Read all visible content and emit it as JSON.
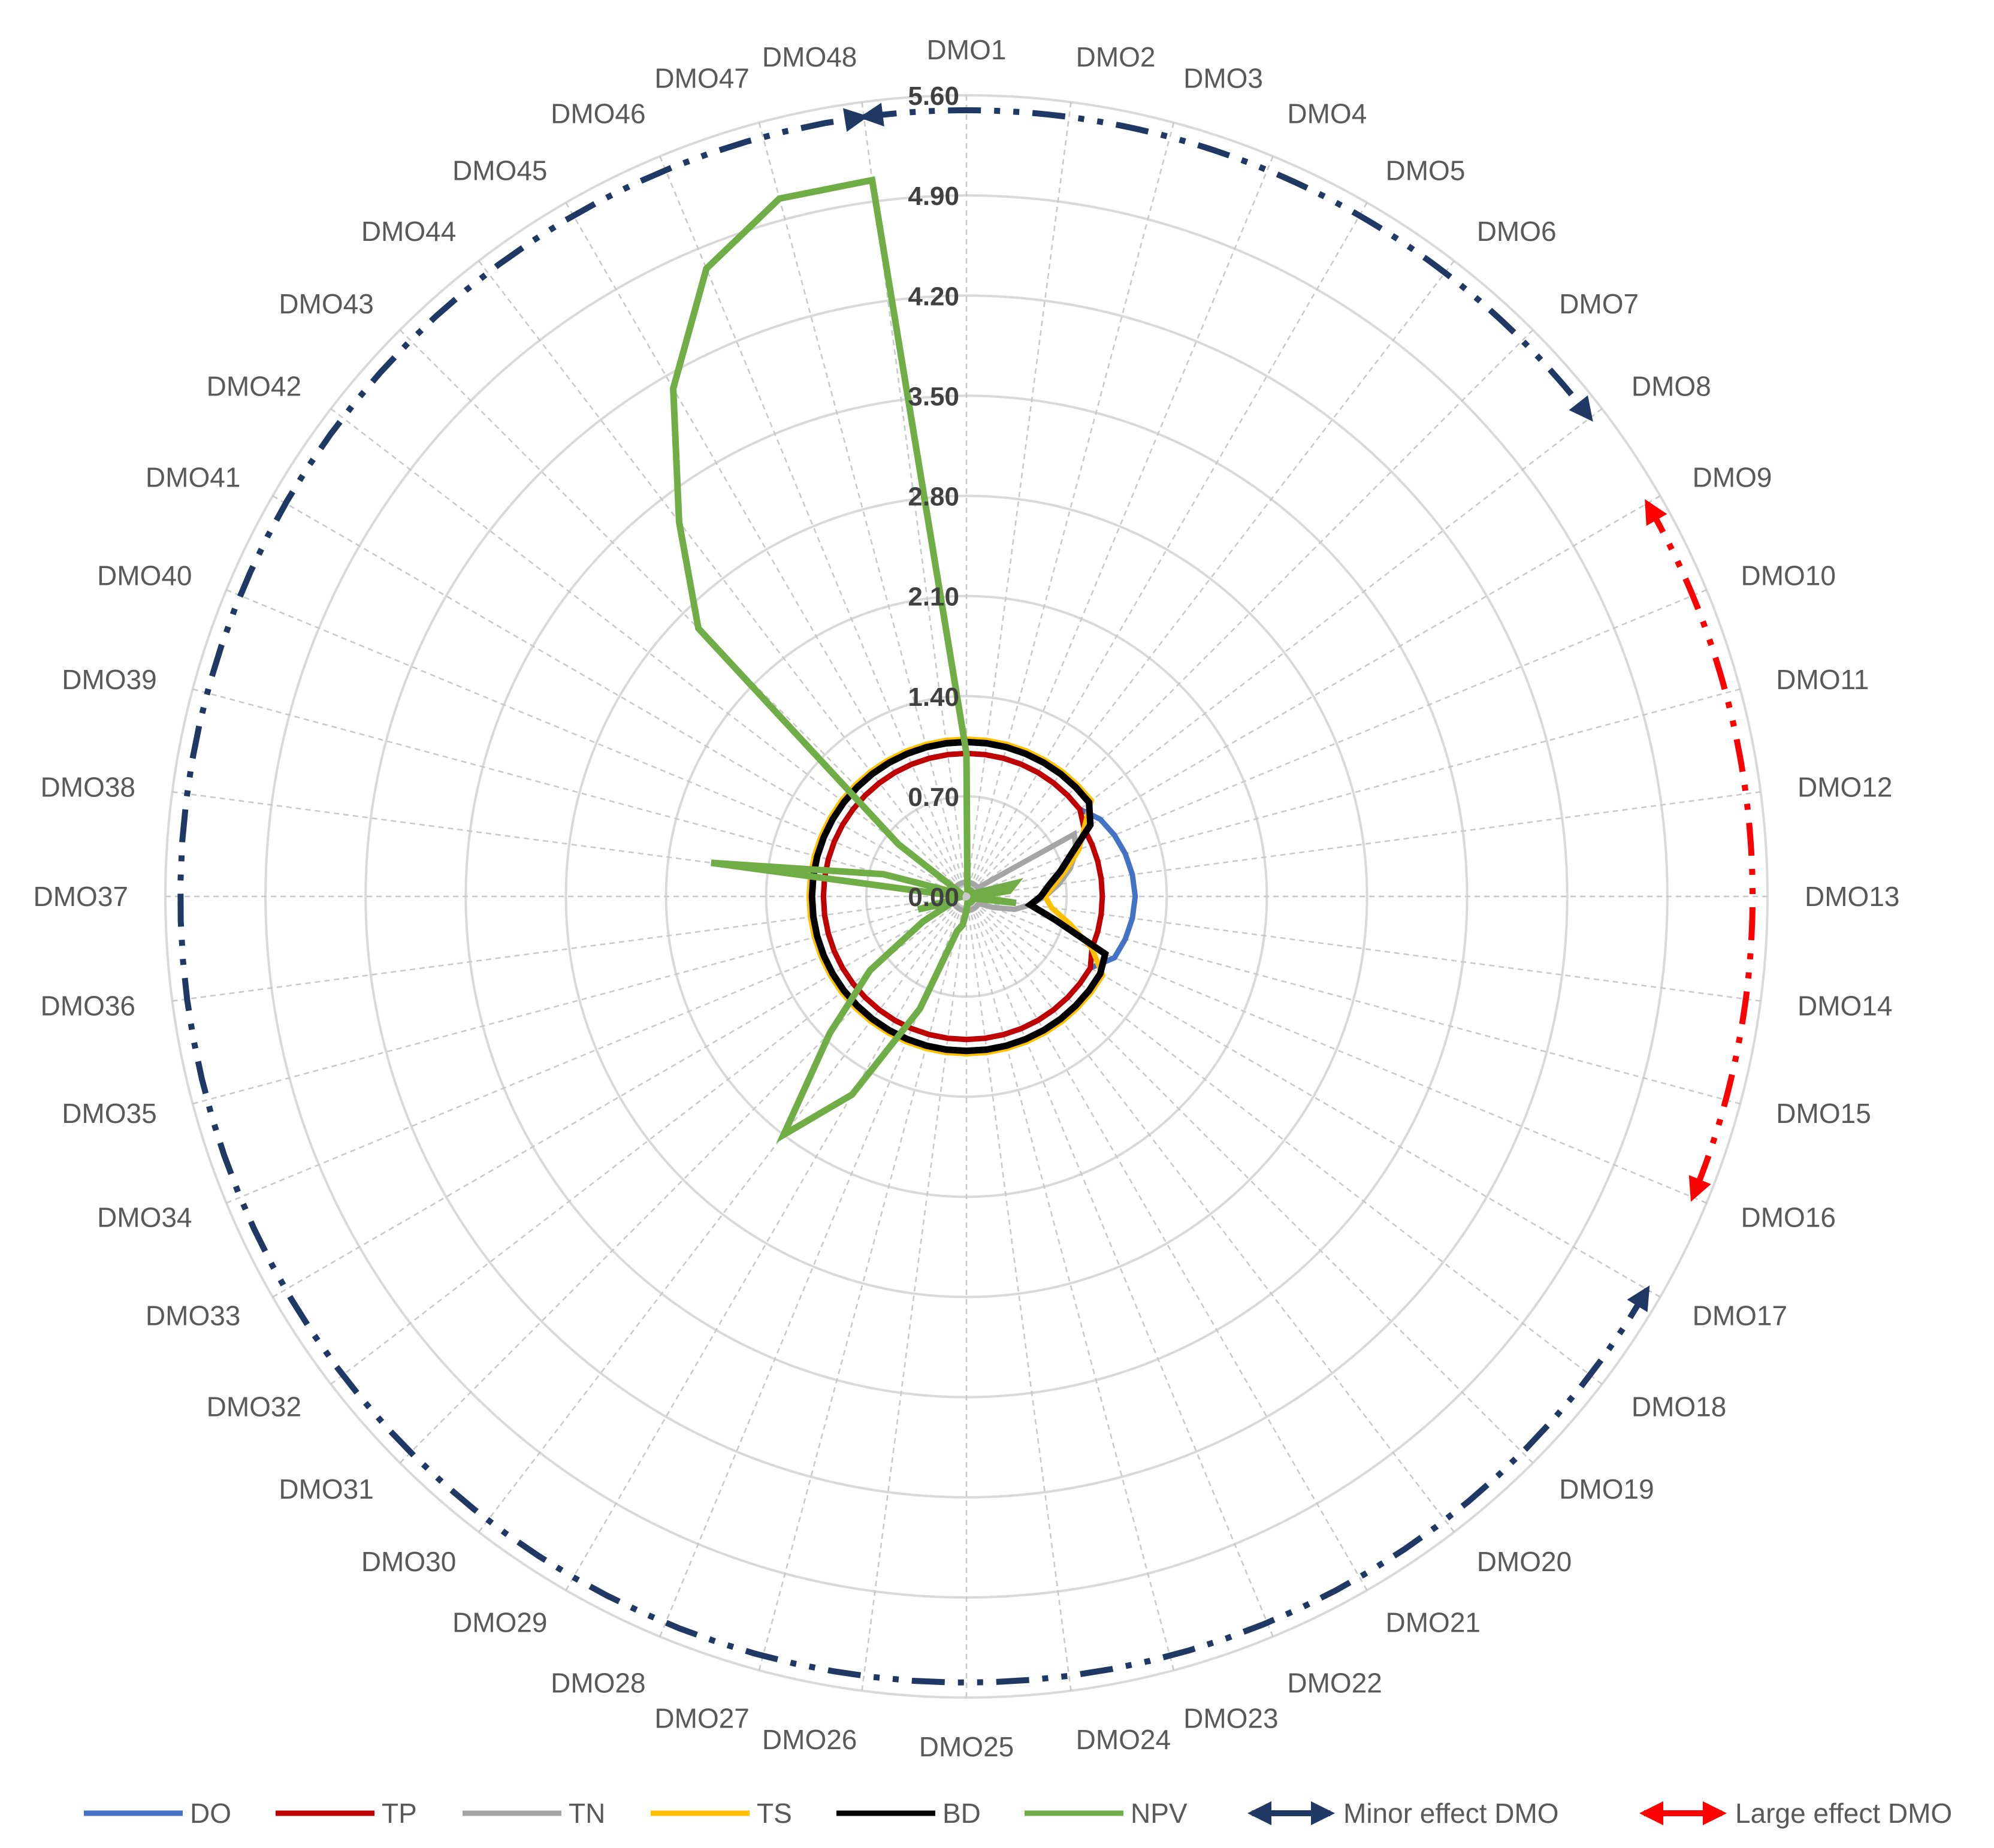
{
  "chart_data": {
    "type": "radar",
    "title": "",
    "categories": [
      "DMO1",
      "DMO2",
      "DMO3",
      "DMO4",
      "DMO5",
      "DMO6",
      "DMO7",
      "DMO8",
      "DMO9",
      "DMO10",
      "DMO11",
      "DMO12",
      "DMO13",
      "DMO14",
      "DMO15",
      "DMO16",
      "DMO17",
      "DMO18",
      "DMO19",
      "DMO20",
      "DMO21",
      "DMO22",
      "DMO23",
      "DMO24",
      "DMO25",
      "DMO26",
      "DMO27",
      "DMO28",
      "DMO29",
      "DMO30",
      "DMO31",
      "DMO32",
      "DMO33",
      "DMO34",
      "DMO35",
      "DMO36",
      "DMO37",
      "DMO38",
      "DMO39",
      "DMO40",
      "DMO41",
      "DMO42",
      "DMO43",
      "DMO44",
      "DMO45",
      "DMO46",
      "DMO47",
      "DMO48"
    ],
    "r_ticks": [
      "0.00",
      "0.70",
      "1.40",
      "2.10",
      "2.80",
      "3.50",
      "4.20",
      "4.90",
      "5.60"
    ],
    "rlim": [
      0,
      5.6
    ],
    "grid": true,
    "legend_position": "bottom",
    "series": [
      {
        "name": "DO",
        "color": "#4472C4",
        "values": [
          1.0,
          1.0,
          1.0,
          1.0,
          1.0,
          1.0,
          1.0,
          1.0,
          1.08,
          1.12,
          1.15,
          1.17,
          1.18,
          1.17,
          1.15,
          1.12,
          1.0,
          1.0,
          1.0,
          1.0,
          1.0,
          1.0,
          1.0,
          1.0,
          1.0,
          1.0,
          1.0,
          1.0,
          1.0,
          1.0,
          1.0,
          1.0,
          1.0,
          1.0,
          1.0,
          1.0,
          1.0,
          1.0,
          1.0,
          1.0,
          1.0,
          1.0,
          1.0,
          1.0,
          1.0,
          1.0,
          1.0,
          1.0
        ]
      },
      {
        "name": "TP",
        "color": "#C00000",
        "values": [
          1.0,
          1.0,
          1.0,
          1.0,
          1.0,
          1.0,
          1.0,
          1.0,
          0.95,
          0.95,
          0.95,
          0.95,
          0.95,
          0.95,
          0.95,
          0.95,
          1.0,
          1.0,
          1.0,
          1.0,
          1.0,
          1.0,
          1.0,
          1.0,
          1.0,
          1.0,
          1.0,
          1.0,
          1.0,
          1.0,
          1.0,
          1.0,
          1.0,
          1.0,
          1.0,
          1.0,
          1.0,
          1.0,
          1.0,
          1.0,
          1.0,
          1.0,
          1.0,
          1.0,
          1.0,
          1.0,
          1.0,
          1.0
        ]
      },
      {
        "name": "TN",
        "color": "#A5A5A5",
        "values": [
          0.1,
          0.1,
          0.1,
          0.1,
          0.1,
          0.1,
          0.1,
          0.1,
          0.87,
          0.83,
          0.75,
          0.65,
          0.55,
          0.45,
          0.35,
          0.2,
          0.1,
          0.1,
          0.1,
          0.1,
          0.1,
          0.1,
          0.1,
          0.1,
          0.1,
          0.1,
          0.1,
          0.1,
          0.1,
          0.1,
          0.1,
          0.1,
          0.1,
          0.1,
          0.1,
          0.1,
          0.1,
          0.1,
          0.1,
          0.1,
          0.1,
          0.1,
          0.1,
          0.1,
          0.1,
          0.1,
          0.1,
          0.1
        ]
      },
      {
        "name": "TS",
        "color": "#FFC000",
        "values": [
          1.1,
          1.1,
          1.1,
          1.1,
          1.1,
          1.1,
          1.1,
          1.1,
          0.95,
          0.85,
          0.72,
          0.62,
          0.55,
          0.6,
          0.75,
          0.95,
          1.1,
          1.1,
          1.1,
          1.1,
          1.1,
          1.1,
          1.1,
          1.1,
          1.1,
          1.1,
          1.1,
          1.1,
          1.1,
          1.1,
          1.1,
          1.1,
          1.1,
          1.1,
          1.1,
          1.1,
          1.1,
          1.1,
          1.1,
          1.1,
          1.1,
          1.1,
          1.1,
          1.1,
          1.1,
          1.1,
          1.1,
          1.1
        ]
      },
      {
        "name": "BD",
        "color": "#000000",
        "values": [
          1.08,
          1.08,
          1.08,
          1.08,
          1.08,
          1.08,
          1.08,
          1.08,
          1.0,
          0.8,
          0.68,
          0.58,
          0.52,
          0.45,
          0.65,
          1.05,
          1.08,
          1.08,
          1.08,
          1.08,
          1.08,
          1.08,
          1.08,
          1.08,
          1.08,
          1.08,
          1.08,
          1.08,
          1.08,
          1.08,
          1.08,
          1.08,
          1.08,
          1.08,
          1.08,
          1.08,
          1.08,
          1.08,
          1.08,
          1.08,
          1.08,
          1.08,
          1.08,
          1.08,
          1.08,
          1.08,
          1.08,
          1.08
        ]
      },
      {
        "name": "NPV",
        "color": "#70AD47",
        "values": [
          1.0,
          0.05,
          0.05,
          0.05,
          0.05,
          0.05,
          0.05,
          0.05,
          0.05,
          0.05,
          0.35,
          0.3,
          0.05,
          0.35,
          0.05,
          0.05,
          0.05,
          0.05,
          0.05,
          0.05,
          0.05,
          0.05,
          0.05,
          0.05,
          0.1,
          0.2,
          0.25,
          0.85,
          1.6,
          2.1,
          1.35,
          0.85,
          0.35,
          0.1,
          0.35,
          0.05,
          0.05,
          1.8,
          0.6,
          0.05,
          0.05,
          0.6,
          2.65,
          3.3,
          4.1,
          4.75,
          5.05,
          5.05
        ]
      }
    ],
    "annotations": [
      {
        "name": "Minor effect DMO",
        "color": "#1F3864",
        "arcs": [
          [
            "DMO17",
            "DMO48"
          ],
          [
            "DMO48",
            "DMO8"
          ]
        ]
      },
      {
        "name": "Large effect DMO",
        "color": "#FF0000",
        "arcs": [
          [
            "DMO9",
            "DMO16"
          ]
        ]
      }
    ]
  }
}
